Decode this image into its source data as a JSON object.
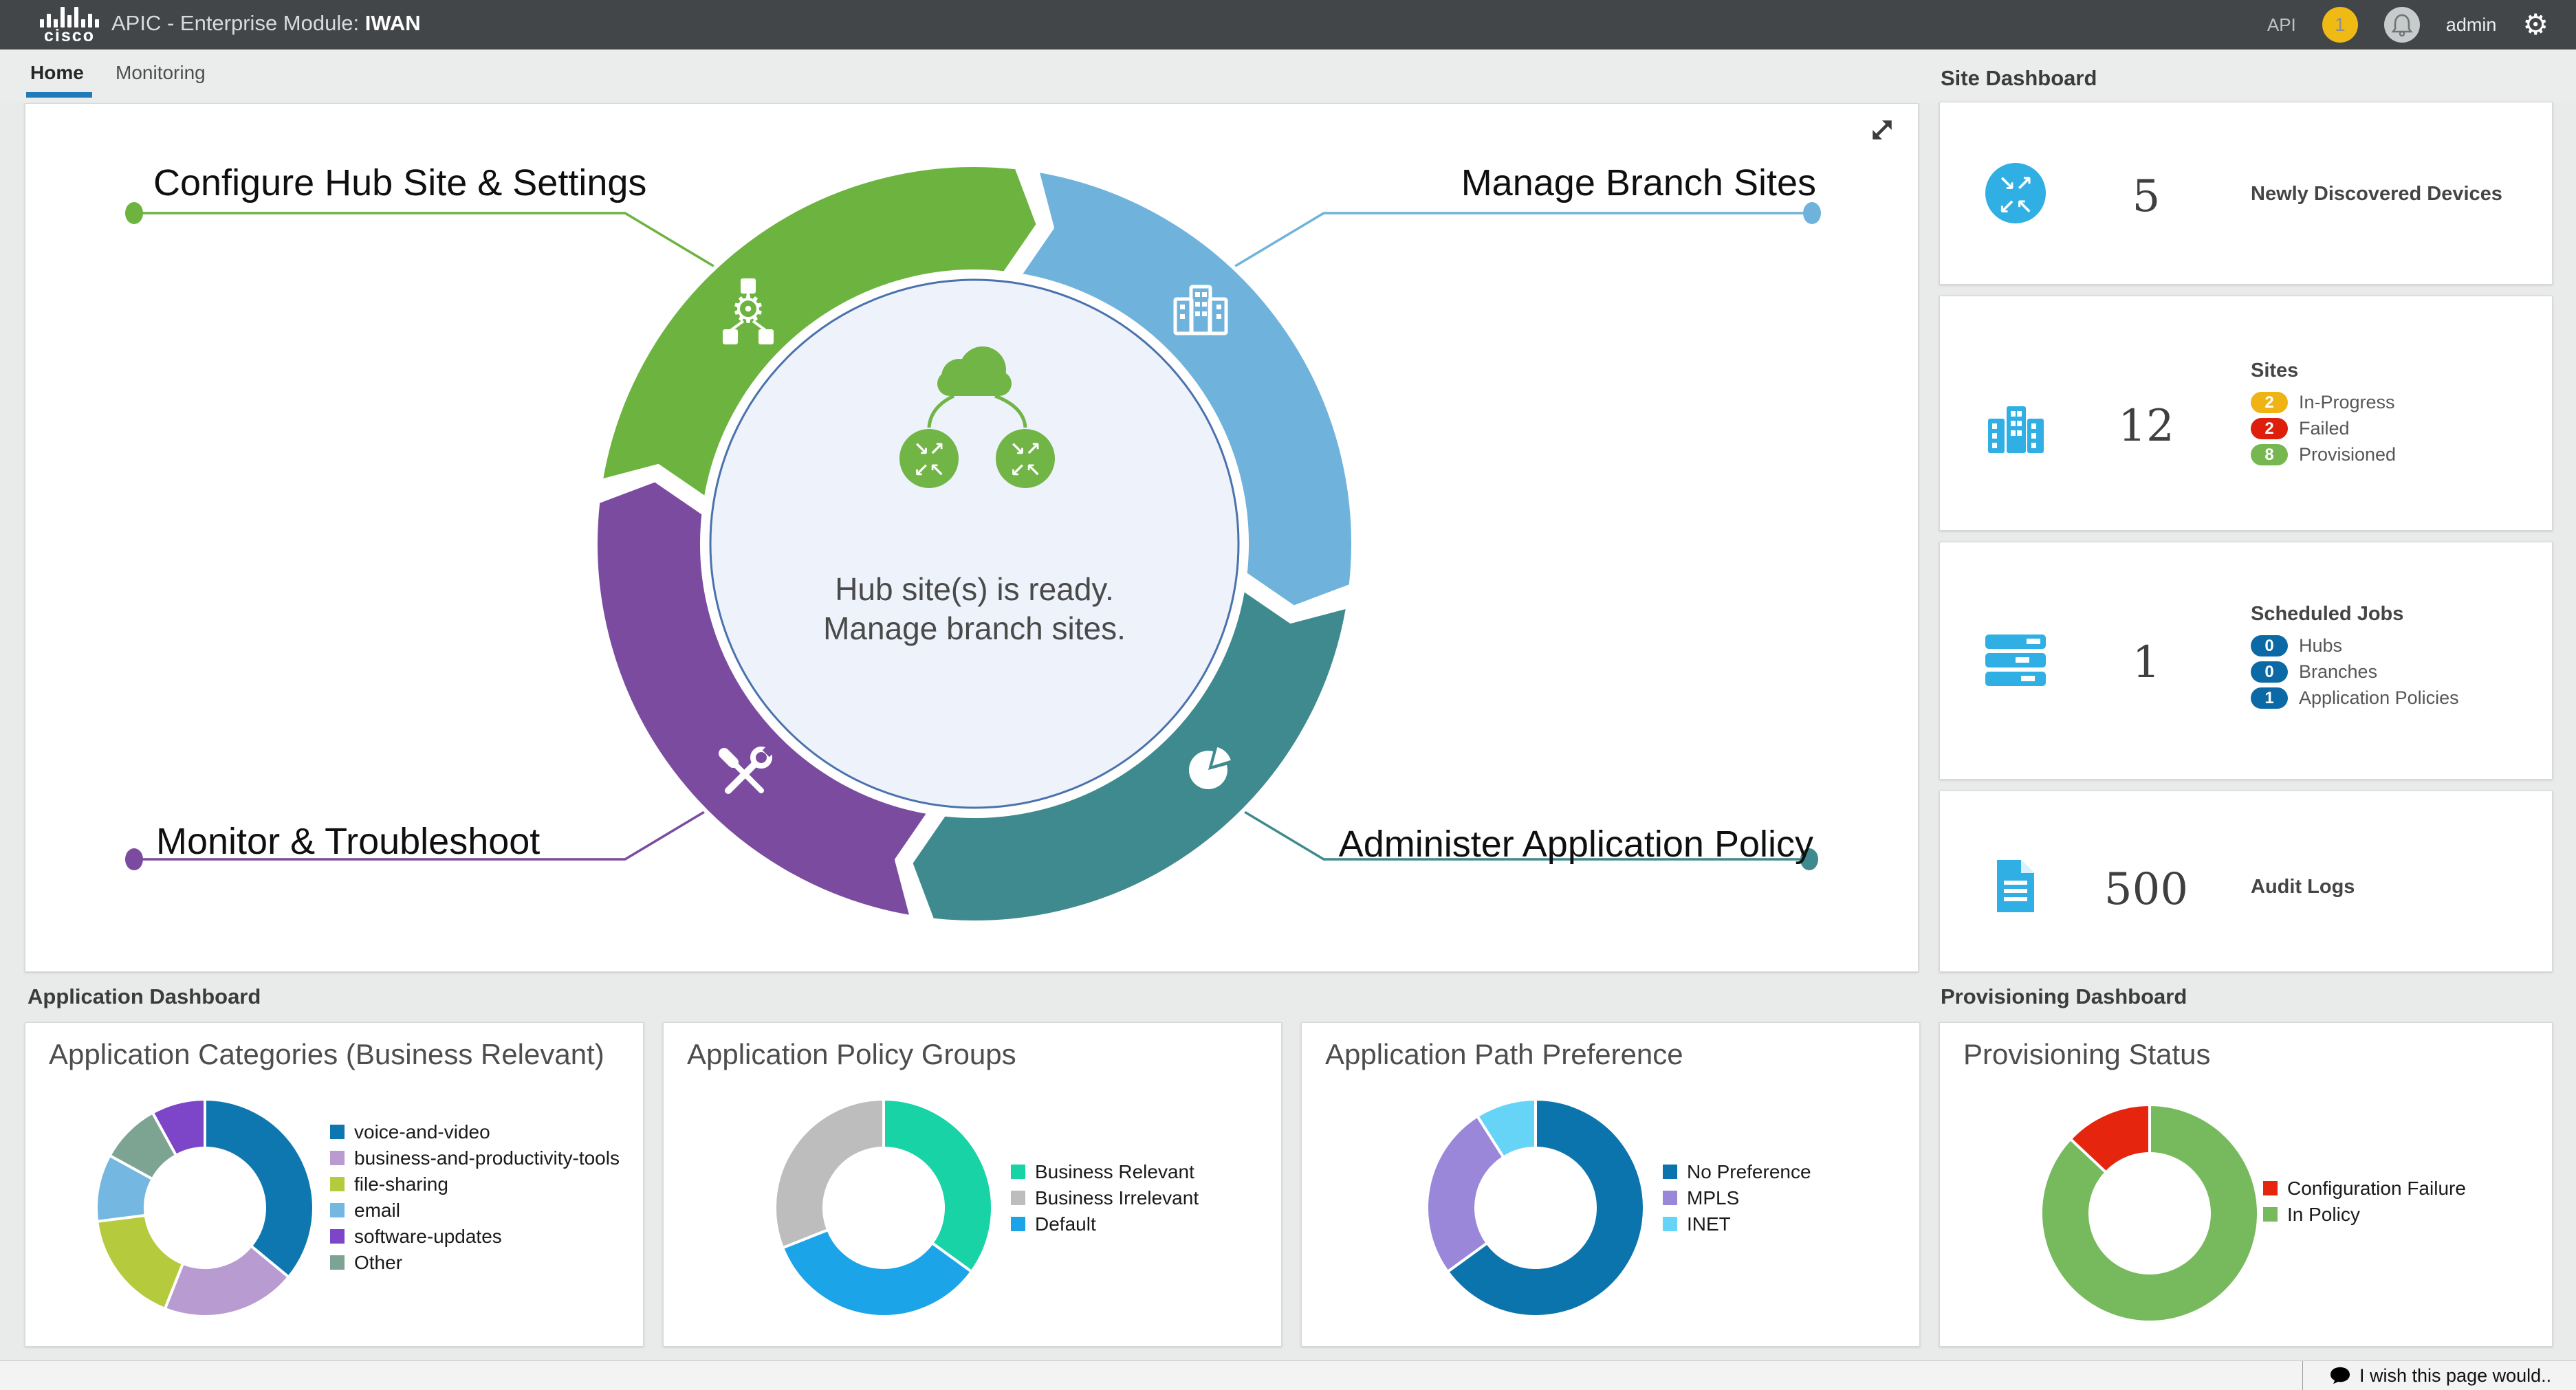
{
  "topbar": {
    "brand": "cisco",
    "title": "APIC - Enterprise Module:",
    "module": "IWAN",
    "api_label": "API",
    "notification_count": "1",
    "user": "admin"
  },
  "tabs": [
    {
      "label": "Home",
      "active": true
    },
    {
      "label": "Monitoring",
      "active": false
    }
  ],
  "ring": {
    "center_line1": "Hub site(s) is ready.",
    "center_line2": "Manage branch sites.",
    "inner_fill": "#eef2fb",
    "inner_stroke": "#4a72ad",
    "center_icon_color": "#71b546",
    "segments": [
      {
        "name": "manage-branch-sites",
        "label": "Manage Branch Sites",
        "color": "#6fb3dc",
        "from": 9,
        "to": 99,
        "icon": "building-icon"
      },
      {
        "name": "administer-application-policy",
        "label": "Administer Application Policy",
        "color": "#3f8a8e",
        "from": 99,
        "to": 189,
        "icon": "pie-icon"
      },
      {
        "name": "monitor-troubleshoot",
        "label": "Monitor & Troubleshoot",
        "color": "#7b4ba0",
        "from": 189,
        "to": 279,
        "icon": "tools-icon"
      },
      {
        "name": "configure-hub-site",
        "label": "Configure Hub Site & Settings",
        "color": "#6db33f",
        "from": 279,
        "to": 369,
        "icon": "hierarchy-icon"
      }
    ]
  },
  "site_dashboard": {
    "title": "Site Dashboard",
    "icon_color": "#2fafe3",
    "cards": [
      {
        "value": "5",
        "label": "Newly Discovered Devices",
        "icon": "router-icon"
      },
      {
        "value": "12",
        "label": "Sites",
        "icon": "buildings-icon",
        "badges": [
          {
            "count": "2",
            "label": "In-Progress",
            "color": "#efb414"
          },
          {
            "count": "2",
            "label": "Failed",
            "color": "#de1f0b"
          },
          {
            "count": "8",
            "label": "Provisioned",
            "color": "#76b84f"
          }
        ]
      },
      {
        "value": "1",
        "label": "Scheduled Jobs",
        "icon": "servers-icon",
        "badges": [
          {
            "count": "0",
            "label": "Hubs",
            "color": "#0b6aa6"
          },
          {
            "count": "0",
            "label": "Branches",
            "color": "#0b6aa6"
          },
          {
            "count": "1",
            "label": "Application Policies",
            "color": "#0b6aa6"
          }
        ]
      },
      {
        "value": "500",
        "label": "Audit Logs",
        "icon": "document-icon"
      }
    ]
  },
  "application_dashboard_title": "Application Dashboard",
  "provisioning_dashboard_title": "Provisioning Dashboard",
  "chart_data": [
    {
      "id": "app-categories",
      "type": "donut",
      "title": "Application Categories (Business Relevant)",
      "segments": [
        {
          "label": "voice-and-video",
          "value": 36,
          "color": "#0f77af"
        },
        {
          "label": "business-and-productivity-tools",
          "value": 20,
          "color": "#b79bd1"
        },
        {
          "label": "file-sharing",
          "value": 17,
          "color": "#b5ca3d"
        },
        {
          "label": "email",
          "value": 10,
          "color": "#74b7e0"
        },
        {
          "label": "Other",
          "value": 9,
          "color": "#7da393"
        },
        {
          "label": "software-updates",
          "value": 8,
          "color": "#7d46c8"
        }
      ],
      "legend": [
        "voice-and-video",
        "business-and-productivity-tools",
        "file-sharing",
        "email",
        "software-updates",
        "Other"
      ]
    },
    {
      "id": "policy-groups",
      "type": "donut",
      "title": "Application Policy Groups",
      "segments": [
        {
          "label": "Business Relevant",
          "value": 35,
          "color": "#17d3a6"
        },
        {
          "label": "Default",
          "value": 34,
          "color": "#1ba4e8"
        },
        {
          "label": "Business Irrelevant",
          "value": 31,
          "color": "#bdbdbd"
        }
      ],
      "legend": [
        "Business Relevant",
        "Business Irrelevant",
        "Default"
      ]
    },
    {
      "id": "path-preference",
      "type": "donut",
      "title": "Application Path Preference",
      "segments": [
        {
          "label": "No Preference",
          "value": 65,
          "color": "#0c74ad"
        },
        {
          "label": "MPLS",
          "value": 26,
          "color": "#9b87da"
        },
        {
          "label": "INET",
          "value": 9,
          "color": "#66d4f7"
        }
      ],
      "legend": [
        "No Preference",
        "MPLS",
        "INET"
      ]
    },
    {
      "id": "provisioning-status",
      "type": "donut",
      "title": "Provisioning Status",
      "segments": [
        {
          "label": "In Policy",
          "value": 87,
          "color": "#77b95d"
        },
        {
          "label": "Configuration Failure",
          "value": 13,
          "color": "#e5250e"
        }
      ],
      "legend": [
        "Configuration Failure",
        "In Policy"
      ]
    }
  ],
  "footer": {
    "feedback": "I wish this page would.."
  }
}
